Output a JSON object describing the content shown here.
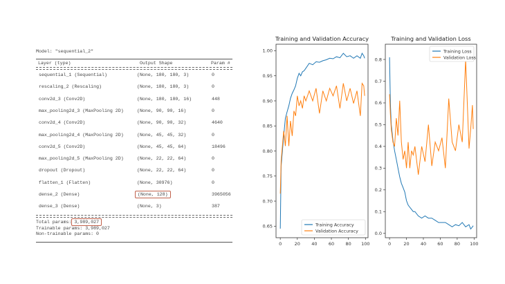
{
  "summary": {
    "model_line": "Model: \"sequential_2\"",
    "headers": [
      "Layer (type)",
      "Output Shape",
      "Param #"
    ],
    "rows": [
      {
        "layer": "sequential_1 (Sequential)",
        "shape": "(None, 180, 180, 3)",
        "params": "0"
      },
      {
        "layer": "rescaling_2 (Rescaling)",
        "shape": "(None, 180, 180, 3)",
        "params": "0"
      },
      {
        "layer": "conv2d_3 (Conv2D)",
        "shape": "(None, 180, 180, 16)",
        "params": "448"
      },
      {
        "layer": "max_pooling2d_3 (MaxPooling 2D)",
        "shape": "(None, 90, 90, 16)",
        "params": "0"
      },
      {
        "layer": "conv2d_4 (Conv2D)",
        "shape": "(None, 90, 90, 32)",
        "params": "4640"
      },
      {
        "layer": "max_pooling2d_4 (MaxPooling 2D)",
        "shape": "(None, 45, 45, 32)",
        "params": "0"
      },
      {
        "layer": "conv2d_5 (Conv2D)",
        "shape": "(None, 45, 45, 64)",
        "params": "18496"
      },
      {
        "layer": "max_pooling2d_5 (MaxPooling 2D)",
        "shape": "(None, 22, 22, 64)",
        "params": "0"
      },
      {
        "layer": "dropout (Dropout)",
        "shape": "(None, 22, 22, 64)",
        "params": "0"
      },
      {
        "layer": "flatten_1 (Flatten)",
        "shape": "(None, 30976)",
        "params": "0"
      },
      {
        "layer": "dense_2 (Dense)",
        "shape": "(None, 128)",
        "params": "3965056"
      },
      {
        "layer": "dense_3 (Dense)",
        "shape": "(None, 3)",
        "params": "387"
      }
    ],
    "total_label": "Total params:",
    "total_value": "3,989,027",
    "trainable": "Trainable params: 3,989,027",
    "non_trainable": "Non-trainable params: 0",
    "highlight_color": "#c0604a"
  },
  "chart_data": [
    {
      "type": "line",
      "title": "Training and Validation Accuracy",
      "xlim": [
        -5,
        103
      ],
      "ylim": [
        0.627,
        1.013
      ],
      "xticks": [
        0,
        20,
        40,
        60,
        80,
        100
      ],
      "yticks": [
        "0.65",
        "0.70",
        "0.75",
        "0.80",
        "0.85",
        "0.90",
        "0.95",
        "1.00"
      ],
      "legend": "bottom-right",
      "x": [
        0,
        1,
        2,
        4,
        6,
        8,
        10,
        12,
        14,
        16,
        18,
        20,
        22,
        24,
        26,
        28,
        30,
        34,
        38,
        42,
        46,
        50,
        54,
        58,
        62,
        66,
        70,
        74,
        78,
        82,
        86,
        90,
        94,
        96,
        98,
        99
      ],
      "series": [
        {
          "name": "Training Accuracy",
          "color": "#1f77b4",
          "values": [
            0.645,
            0.77,
            0.79,
            0.83,
            0.865,
            0.878,
            0.89,
            0.905,
            0.915,
            0.922,
            0.93,
            0.945,
            0.955,
            0.95,
            0.958,
            0.96,
            0.965,
            0.975,
            0.972,
            0.978,
            0.977,
            0.98,
            0.982,
            0.985,
            0.984,
            0.988,
            0.986,
            0.995,
            0.988,
            0.99,
            0.985,
            0.99,
            0.985,
            0.995,
            0.99,
            0.985
          ]
        },
        {
          "name": "Validation Accuracy",
          "color": "#ff7f0e",
          "values": [
            0.715,
            0.78,
            0.8,
            0.84,
            0.81,
            0.87,
            0.81,
            0.86,
            0.83,
            0.88,
            0.87,
            0.91,
            0.89,
            0.9,
            0.885,
            0.91,
            0.9,
            0.92,
            0.9,
            0.925,
            0.875,
            0.92,
            0.9,
            0.925,
            0.91,
            0.93,
            0.885,
            0.935,
            0.9,
            0.925,
            0.895,
            0.92,
            0.87,
            0.935,
            0.93,
            0.91
          ]
        }
      ]
    },
    {
      "type": "line",
      "title": "Training and Validation Loss",
      "xlim": [
        -5,
        103
      ],
      "ylim": [
        -0.02,
        0.87
      ],
      "xticks": [
        0,
        20,
        40,
        60,
        80,
        100
      ],
      "yticks": [
        "0.0",
        "0.1",
        "0.2",
        "0.3",
        "0.4",
        "0.5",
        "0.6",
        "0.7",
        "0.8"
      ],
      "legend": "top-right",
      "x": [
        0,
        1,
        2,
        4,
        6,
        8,
        10,
        12,
        14,
        16,
        18,
        20,
        22,
        24,
        26,
        28,
        30,
        34,
        38,
        42,
        46,
        50,
        54,
        58,
        62,
        66,
        70,
        74,
        78,
        82,
        86,
        90,
        94,
        96,
        98,
        99
      ],
      "series": [
        {
          "name": "Training Loss",
          "color": "#1f77b4",
          "values": [
            0.81,
            0.6,
            0.5,
            0.43,
            0.38,
            0.34,
            0.3,
            0.26,
            0.23,
            0.21,
            0.19,
            0.15,
            0.13,
            0.12,
            0.11,
            0.1,
            0.1,
            0.08,
            0.07,
            0.08,
            0.07,
            0.07,
            0.06,
            0.05,
            0.05,
            0.05,
            0.04,
            0.03,
            0.04,
            0.035,
            0.05,
            0.03,
            0.04,
            0.02,
            0.03,
            0.035
          ]
        },
        {
          "name": "Validation Loss",
          "color": "#ff7f0e",
          "values": [
            0.64,
            0.55,
            0.48,
            0.42,
            0.4,
            0.53,
            0.45,
            0.61,
            0.42,
            0.34,
            0.38,
            0.3,
            0.42,
            0.3,
            0.38,
            0.36,
            0.4,
            0.27,
            0.4,
            0.33,
            0.5,
            0.31,
            0.42,
            0.38,
            0.44,
            0.3,
            0.62,
            0.42,
            0.38,
            0.5,
            0.42,
            0.8,
            0.39,
            0.48,
            0.59,
            0.48
          ]
        }
      ]
    }
  ]
}
